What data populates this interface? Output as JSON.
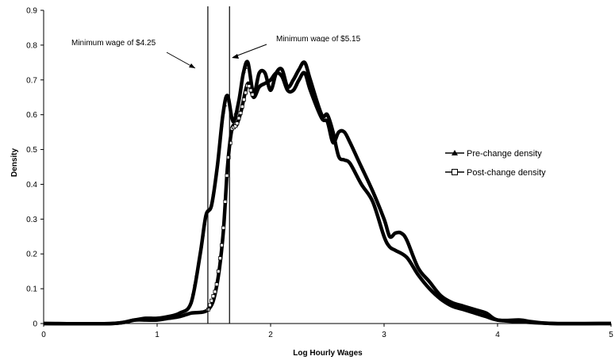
{
  "chart_data": {
    "type": "line",
    "title": "",
    "xlabel": "Log Hourly Wages",
    "ylabel": "Density",
    "xlim": [
      0,
      5
    ],
    "ylim": [
      0,
      0.9
    ],
    "x_ticks": [
      "0",
      "1",
      "2",
      "3",
      "4",
      "5"
    ],
    "y_ticks": [
      "0",
      "0.1",
      "0.2",
      "0.3",
      "0.4",
      "0.5",
      "0.6",
      "0.7",
      "0.8",
      "0.9"
    ],
    "grid": false,
    "legend_position": "right",
    "series": [
      {
        "name": "Pre-change density",
        "marker": "triangle",
        "points": [
          [
            0,
            0
          ],
          [
            0.6,
            0
          ],
          [
            0.8,
            0.01
          ],
          [
            0.9,
            0.015
          ],
          [
            1.0,
            0.015
          ],
          [
            1.1,
            0.02
          ],
          [
            1.2,
            0.03
          ],
          [
            1.3,
            0.06
          ],
          [
            1.38,
            0.2
          ],
          [
            1.43,
            0.31
          ],
          [
            1.48,
            0.34
          ],
          [
            1.53,
            0.45
          ],
          [
            1.58,
            0.6
          ],
          [
            1.62,
            0.655
          ],
          [
            1.67,
            0.58
          ],
          [
            1.72,
            0.64
          ],
          [
            1.76,
            0.72
          ],
          [
            1.8,
            0.75
          ],
          [
            1.85,
            0.66
          ],
          [
            1.9,
            0.72
          ],
          [
            1.95,
            0.72
          ],
          [
            2.0,
            0.67
          ],
          [
            2.05,
            0.72
          ],
          [
            2.1,
            0.73
          ],
          [
            2.15,
            0.68
          ],
          [
            2.2,
            0.7
          ],
          [
            2.25,
            0.73
          ],
          [
            2.3,
            0.75
          ],
          [
            2.35,
            0.7
          ],
          [
            2.45,
            0.6
          ],
          [
            2.5,
            0.6
          ],
          [
            2.55,
            0.55
          ],
          [
            2.6,
            0.48
          ],
          [
            2.65,
            0.47
          ],
          [
            2.7,
            0.46
          ],
          [
            2.8,
            0.4
          ],
          [
            2.9,
            0.35
          ],
          [
            3.0,
            0.25
          ],
          [
            3.05,
            0.22
          ],
          [
            3.1,
            0.21
          ],
          [
            3.2,
            0.19
          ],
          [
            3.3,
            0.14
          ],
          [
            3.4,
            0.1
          ],
          [
            3.5,
            0.07
          ],
          [
            3.6,
            0.05
          ],
          [
            3.7,
            0.04
          ],
          [
            3.8,
            0.03
          ],
          [
            3.9,
            0.02
          ],
          [
            4.0,
            0.01
          ],
          [
            4.2,
            0.005
          ],
          [
            4.5,
            0
          ],
          [
            5.0,
            0
          ]
        ]
      },
      {
        "name": "Post-change density",
        "marker": "square",
        "points": [
          [
            0,
            0
          ],
          [
            0.6,
            0
          ],
          [
            0.8,
            0.01
          ],
          [
            0.9,
            0.01
          ],
          [
            1.0,
            0.01
          ],
          [
            1.1,
            0.015
          ],
          [
            1.2,
            0.02
          ],
          [
            1.3,
            0.03
          ],
          [
            1.45,
            0.04
          ],
          [
            1.52,
            0.1
          ],
          [
            1.58,
            0.25
          ],
          [
            1.62,
            0.45
          ],
          [
            1.66,
            0.56
          ],
          [
            1.7,
            0.57
          ],
          [
            1.74,
            0.61
          ],
          [
            1.8,
            0.69
          ],
          [
            1.85,
            0.65
          ],
          [
            1.9,
            0.68
          ],
          [
            1.95,
            0.69
          ],
          [
            2.0,
            0.7
          ],
          [
            2.05,
            0.72
          ],
          [
            2.1,
            0.71
          ],
          [
            2.15,
            0.67
          ],
          [
            2.2,
            0.67
          ],
          [
            2.25,
            0.7
          ],
          [
            2.3,
            0.72
          ],
          [
            2.35,
            0.67
          ],
          [
            2.45,
            0.59
          ],
          [
            2.5,
            0.58
          ],
          [
            2.55,
            0.52
          ],
          [
            2.6,
            0.55
          ],
          [
            2.65,
            0.55
          ],
          [
            2.7,
            0.52
          ],
          [
            2.8,
            0.45
          ],
          [
            2.9,
            0.38
          ],
          [
            3.0,
            0.3
          ],
          [
            3.05,
            0.25
          ],
          [
            3.1,
            0.26
          ],
          [
            3.15,
            0.26
          ],
          [
            3.2,
            0.24
          ],
          [
            3.3,
            0.16
          ],
          [
            3.4,
            0.12
          ],
          [
            3.5,
            0.08
          ],
          [
            3.6,
            0.06
          ],
          [
            3.7,
            0.05
          ],
          [
            3.8,
            0.04
          ],
          [
            3.9,
            0.03
          ],
          [
            4.0,
            0.01
          ],
          [
            4.2,
            0.01
          ],
          [
            4.3,
            0.005
          ],
          [
            4.5,
            0
          ],
          [
            5.0,
            0
          ]
        ]
      }
    ],
    "vertical_lines": [
      {
        "x": 1.447,
        "label": "Minimum wage of $4.25"
      },
      {
        "x": 1.638,
        "label": "Minimum wage of $5.15"
      }
    ]
  }
}
